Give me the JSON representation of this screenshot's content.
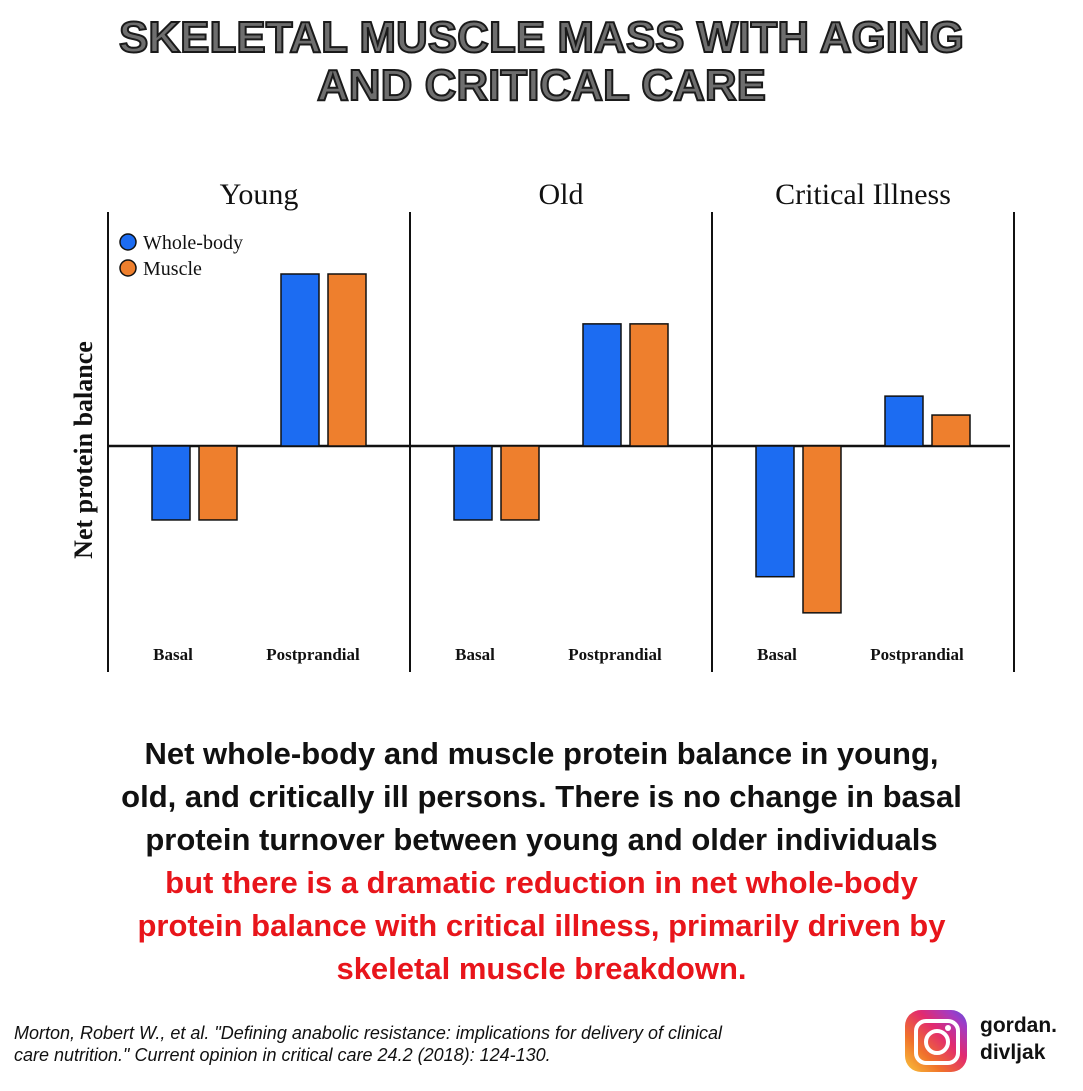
{
  "title": {
    "line1": "SKELETAL MUSCLE MASS WITH AGING",
    "line2": "AND CRITICAL CARE"
  },
  "chart_data": {
    "type": "bar",
    "ylabel": "Net protein balance",
    "legend": {
      "placement": "top-left",
      "entries": [
        {
          "name": "Whole-body",
          "color": "#1c6cf2"
        },
        {
          "name": "Muscle",
          "color": "#ee7f2d"
        }
      ]
    },
    "panels": [
      {
        "title": "Young",
        "categories": [
          "Basal",
          "Postprandial"
        ],
        "series": [
          {
            "name": "Whole-body",
            "values": [
              -0.43,
              1.0
            ]
          },
          {
            "name": "Muscle",
            "values": [
              -0.43,
              1.0
            ]
          }
        ]
      },
      {
        "title": "Old",
        "categories": [
          "Basal",
          "Postprandial"
        ],
        "series": [
          {
            "name": "Whole-body",
            "values": [
              -0.43,
              0.71
            ]
          },
          {
            "name": "Muscle",
            "values": [
              -0.43,
              0.71
            ]
          }
        ]
      },
      {
        "title": "Critical Illness",
        "categories": [
          "Basal",
          "Postprandial"
        ],
        "series": [
          {
            "name": "Whole-body",
            "values": [
              -0.76,
              0.29
            ]
          },
          {
            "name": "Muscle",
            "values": [
              -0.97,
              0.18
            ]
          }
        ]
      }
    ],
    "ylim": [
      -1.2,
      1.3
    ],
    "grid": false,
    "colors": {
      "whole_body": "#1c6cf2",
      "muscle": "#ee7f2d",
      "axis": "#111111"
    }
  },
  "caption": {
    "black_lines": [
      "Net whole-body and muscle protein balance in young,",
      "old, and critically ill persons. There is no change in basal",
      "protein turnover between young and older individuals"
    ],
    "red_lines": [
      "but there is a dramatic reduction in net whole-body",
      "protein balance with critical illness, primarily driven by",
      "skeletal muscle breakdown."
    ]
  },
  "citation": {
    "line1": "Morton, Robert W., et al. \"Defining anabolic resistance: implications for delivery of clinical",
    "line2": "care nutrition.\" Current opinion in critical care 24.2 (2018): 124-130."
  },
  "brand": {
    "icon": "instagram-icon",
    "line1": "gordan.",
    "line2": "divljak"
  }
}
